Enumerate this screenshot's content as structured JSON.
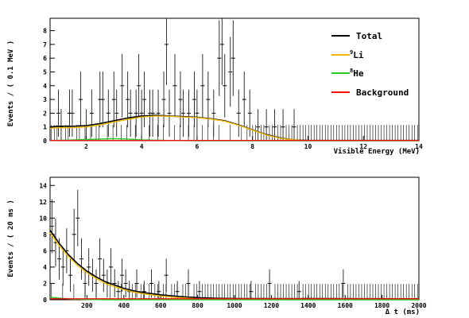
{
  "colors": {
    "total": "#000000",
    "li9": "#f2b800",
    "he8": "#22cc22",
    "background": "#ee1111",
    "data_points": "#000000"
  },
  "legend": {
    "total_label": "Total",
    "li9_sup": "9",
    "li9_label": "Li",
    "he8_sup": "8",
    "he8_label": "He",
    "background_label": "Background"
  },
  "chart_data": [
    {
      "type": "scatter",
      "title": "",
      "xlabel": "Visible Energy (MeV)",
      "ylabel": "Events / ( 0.1 MeV )",
      "xlim": [
        0.7,
        14
      ],
      "ylim": [
        0,
        8.9
      ],
      "x_ticks": [
        2,
        4,
        6,
        8,
        10,
        12,
        14
      ],
      "y_ticks": [
        0,
        1,
        2,
        3,
        4,
        5,
        6,
        7,
        8
      ],
      "grid": false,
      "legend_position": "top-right",
      "points": {
        "name": "Data",
        "x": [
          1.0,
          1.1,
          1.4,
          1.5,
          1.8,
          2.0,
          2.2,
          2.5,
          2.6,
          2.8,
          3.0,
          3.1,
          3.3,
          3.5,
          3.6,
          3.8,
          3.9,
          4.0,
          4.1,
          4.3,
          4.4,
          4.6,
          4.8,
          4.9,
          5.0,
          5.2,
          5.4,
          5.5,
          5.7,
          5.9,
          6.0,
          6.2,
          6.4,
          6.6,
          6.8,
          6.9,
          7.0,
          7.2,
          7.3,
          7.5,
          7.7,
          7.9,
          8.2,
          8.5,
          8.8,
          9.1,
          9.5
        ],
        "y": [
          2,
          1,
          2,
          2,
          3,
          1,
          2,
          3,
          3,
          2,
          3,
          2,
          4,
          3,
          2,
          2,
          4,
          2,
          3,
          2,
          2,
          2,
          3,
          7,
          2,
          4,
          3,
          2,
          2,
          3,
          2,
          4,
          3,
          2,
          6,
          7,
          4,
          5,
          6,
          2,
          3,
          2,
          1,
          1,
          1,
          1,
          1
        ]
      },
      "series": [
        {
          "name": "Total",
          "x": [
            0.7,
            1.0,
            1.5,
            2.0,
            2.5,
            3.0,
            3.5,
            4.0,
            4.5,
            5.0,
            5.5,
            6.0,
            6.5,
            7.0,
            7.5,
            8.0,
            8.5,
            9.0,
            9.5,
            10.0,
            14.0
          ],
          "y": [
            1.0,
            1.05,
            1.05,
            1.1,
            1.25,
            1.45,
            1.65,
            1.8,
            1.85,
            1.8,
            1.75,
            1.7,
            1.6,
            1.45,
            1.15,
            0.8,
            0.45,
            0.2,
            0.05,
            0.02,
            0.02
          ]
        },
        {
          "name": "9Li",
          "x": [
            0.7,
            1.0,
            1.5,
            2.0,
            2.5,
            3.0,
            3.5,
            4.0,
            4.5,
            5.0,
            5.5,
            6.0,
            6.5,
            7.0,
            7.5,
            8.0,
            8.5,
            9.0,
            9.5,
            10.0,
            14.0
          ],
          "y": [
            0.9,
            0.95,
            0.95,
            1.0,
            1.15,
            1.35,
            1.55,
            1.72,
            1.8,
            1.78,
            1.72,
            1.68,
            1.58,
            1.42,
            1.12,
            0.78,
            0.42,
            0.18,
            0.05,
            0.0,
            0.0
          ]
        },
        {
          "name": "8He",
          "x": [
            0.7,
            1.5,
            2.5,
            3.0,
            3.5,
            4.0,
            5.0,
            6.0,
            14.0
          ],
          "y": [
            0.02,
            0.05,
            0.12,
            0.15,
            0.12,
            0.06,
            0.02,
            0.0,
            0.0
          ]
        },
        {
          "name": "Background",
          "x": [
            0.7,
            14.0
          ],
          "y": [
            0.02,
            0.02
          ]
        }
      ]
    },
    {
      "type": "scatter",
      "title": "",
      "xlabel": "Δ t (ms)",
      "ylabel": "Events / ( 20 ms )",
      "xlim": [
        0,
        2000
      ],
      "ylim": [
        0,
        15
      ],
      "x_ticks": [
        200,
        400,
        600,
        800,
        1000,
        1200,
        1400,
        1600,
        1800,
        2000
      ],
      "y_ticks": [
        0,
        2,
        4,
        6,
        8,
        10,
        12,
        14
      ],
      "grid": false,
      "legend_position": "none",
      "points": {
        "name": "Data",
        "x": [
          10,
          30,
          50,
          70,
          90,
          110,
          130,
          150,
          170,
          190,
          210,
          230,
          250,
          270,
          290,
          310,
          330,
          350,
          370,
          390,
          410,
          430,
          470,
          510,
          550,
          590,
          630,
          690,
          750,
          810,
          1090,
          1190,
          1350,
          1590
        ],
        "y": [
          9,
          7,
          5,
          4,
          6,
          3,
          8,
          10,
          5,
          2,
          4,
          3,
          2,
          5,
          3,
          2,
          4,
          2,
          1,
          3,
          2,
          1,
          2,
          1,
          2,
          1,
          3,
          1,
          2,
          1,
          1,
          2,
          1,
          2
        ]
      },
      "series": [
        {
          "name": "Total",
          "x": [
            0,
            50,
            100,
            150,
            200,
            250,
            300,
            350,
            400,
            450,
            500,
            600,
            700,
            800,
            900,
            1000,
            2000
          ],
          "y": [
            8.5,
            6.9,
            5.5,
            4.4,
            3.5,
            2.8,
            2.2,
            1.8,
            1.4,
            1.1,
            0.9,
            0.6,
            0.4,
            0.25,
            0.18,
            0.15,
            0.12
          ]
        },
        {
          "name": "9Li",
          "x": [
            0,
            50,
            100,
            150,
            200,
            250,
            300,
            350,
            400,
            450,
            500,
            600,
            700,
            800,
            900,
            1000,
            2000
          ],
          "y": [
            8.2,
            6.6,
            5.3,
            4.2,
            3.3,
            2.6,
            2.0,
            1.6,
            1.25,
            0.95,
            0.75,
            0.45,
            0.25,
            0.12,
            0.05,
            0.02,
            0.0
          ]
        },
        {
          "name": "8He",
          "x": [
            0,
            50,
            100,
            200,
            300,
            2000
          ],
          "y": [
            0.3,
            0.2,
            0.1,
            0.03,
            0.0,
            0.0
          ]
        },
        {
          "name": "Background",
          "x": [
            0,
            2000
          ],
          "y": [
            0.12,
            0.12
          ]
        }
      ]
    }
  ]
}
